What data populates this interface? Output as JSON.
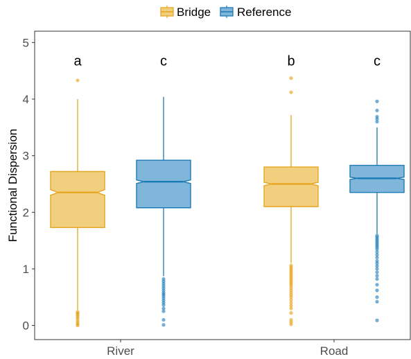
{
  "chart_data": {
    "type": "boxplot",
    "notched": true,
    "title": "",
    "xlabel": "",
    "ylabel": "Functional Dispersion",
    "ylim": [
      -0.25,
      5.2
    ],
    "y_ticks": [
      "0",
      "1",
      "2",
      "3",
      "4",
      "5"
    ],
    "y_tick_values": [
      0,
      1,
      2,
      3,
      4,
      5
    ],
    "grid": false,
    "legend_position": "top",
    "categories": [
      "River",
      "Road"
    ],
    "colors": {
      "Bridge": {
        "fill": "#f2cf7f",
        "stroke": "#e6a51e",
        "point": "#e6a51e"
      },
      "Reference": {
        "fill": "#7fb6d9",
        "stroke": "#1a7ab5",
        "point": "#2a82bd"
      }
    },
    "series": [
      {
        "name": "Bridge",
        "boxes": [
          {
            "category": "River",
            "min": 0.27,
            "q1": 1.73,
            "median": 2.35,
            "q3": 2.72,
            "max": 4.0,
            "notch_low": 2.3,
            "notch_high": 2.4,
            "outliers": [
              4.33,
              0.24,
              0.22,
              0.2,
              0.18,
              0.15,
              0.12,
              0.08,
              0.05,
              0.02,
              0.0
            ]
          },
          {
            "category": "Road",
            "min": 1.1,
            "q1": 2.1,
            "median": 2.5,
            "q3": 2.8,
            "max": 3.72,
            "notch_low": 2.47,
            "notch_high": 2.53,
            "outliers": [
              4.37,
              4.12,
              1.06,
              1.03,
              1.0,
              0.97,
              0.94,
              0.91,
              0.88,
              0.85,
              0.82,
              0.79,
              0.76,
              0.73,
              0.7,
              0.66,
              0.62,
              0.58,
              0.54,
              0.5,
              0.45,
              0.4,
              0.35,
              0.3,
              0.22,
              0.1,
              0.06,
              0.02
            ]
          }
        ]
      },
      {
        "name": "Reference",
        "boxes": [
          {
            "category": "River",
            "min": 0.87,
            "q1": 2.08,
            "median": 2.54,
            "q3": 2.92,
            "max": 4.04,
            "notch_low": 2.51,
            "notch_high": 2.57,
            "outliers": [
              0.82,
              0.78,
              0.74,
              0.7,
              0.66,
              0.62,
              0.58,
              0.55,
              0.52,
              0.48,
              0.44,
              0.4,
              0.36,
              0.3,
              0.25,
              0.1,
              0.01
            ]
          },
          {
            "category": "Road",
            "min": 1.62,
            "q1": 2.35,
            "median": 2.6,
            "q3": 2.83,
            "max": 3.5,
            "notch_low": 2.58,
            "notch_high": 2.62,
            "outliers": [
              3.96,
              3.8,
              3.69,
              3.65,
              3.6,
              1.59,
              1.56,
              1.53,
              1.5,
              1.47,
              1.44,
              1.41,
              1.38,
              1.35,
              1.3,
              1.25,
              1.2,
              1.14,
              1.1,
              1.05,
              1.0,
              0.94,
              0.88,
              0.82,
              0.72,
              0.62,
              0.5,
              0.42,
              0.09
            ]
          }
        ]
      }
    ],
    "annotations": [
      {
        "category": "River",
        "series": "Bridge",
        "text": "a"
      },
      {
        "category": "River",
        "series": "Reference",
        "text": "c"
      },
      {
        "category": "Road",
        "series": "Bridge",
        "text": "b"
      },
      {
        "category": "Road",
        "series": "Reference",
        "text": "c"
      }
    ],
    "annotation_y": 4.68
  }
}
